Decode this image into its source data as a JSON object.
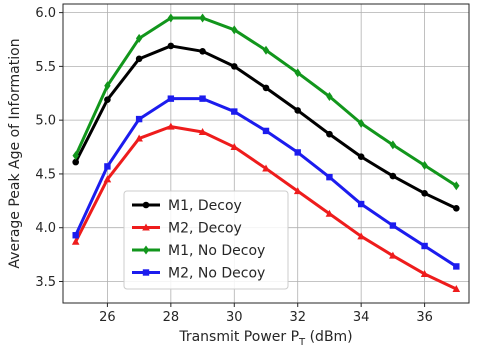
{
  "chart_data": {
    "type": "line",
    "title": "",
    "xlabel": "Transmit Power P",
    "xlabel_sub": "T",
    "xlabel_suffix": " (dBm)",
    "ylabel": "Average Peak Age of Information",
    "xlim": [
      24.6,
      37.4
    ],
    "ylim": [
      3.3,
      6.08
    ],
    "xticks": [
      26,
      28,
      30,
      32,
      34,
      36
    ],
    "yticks": [
      3.5,
      4.0,
      4.5,
      5.0,
      5.5,
      6.0
    ],
    "xtick_labels": [
      "26",
      "28",
      "30",
      "32",
      "34",
      "36"
    ],
    "ytick_labels": [
      "3.5",
      "4.0",
      "4.5",
      "5.0",
      "5.5",
      "6.0"
    ],
    "grid": true,
    "legend_position": "lower-left",
    "x": [
      25,
      26,
      27,
      28,
      29,
      30,
      31,
      32,
      33,
      34,
      35,
      36,
      37
    ],
    "series": [
      {
        "name": "M1, Decoy",
        "color": "#000000",
        "marker": "circle",
        "values": [
          4.61,
          5.19,
          5.57,
          5.69,
          5.64,
          5.5,
          5.3,
          5.09,
          4.87,
          4.66,
          4.48,
          4.32,
          4.18
        ]
      },
      {
        "name": "M2, Decoy",
        "color": "#ee1c1c",
        "marker": "triangle",
        "values": [
          3.87,
          4.45,
          4.83,
          4.94,
          4.89,
          4.75,
          4.55,
          4.34,
          4.13,
          3.92,
          3.74,
          3.57,
          3.43
        ]
      },
      {
        "name": "M1, No Decoy",
        "color": "#12961c",
        "marker": "diamond",
        "values": [
          4.67,
          5.32,
          5.76,
          5.95,
          5.95,
          5.84,
          5.65,
          5.44,
          5.22,
          4.97,
          4.77,
          4.58,
          4.39
        ]
      },
      {
        "name": "M2, No Decoy",
        "color": "#1c1cee",
        "marker": "square",
        "values": [
          3.93,
          4.57,
          5.01,
          5.2,
          5.2,
          5.08,
          4.9,
          4.7,
          4.47,
          4.22,
          4.02,
          3.83,
          3.64
        ]
      }
    ]
  }
}
